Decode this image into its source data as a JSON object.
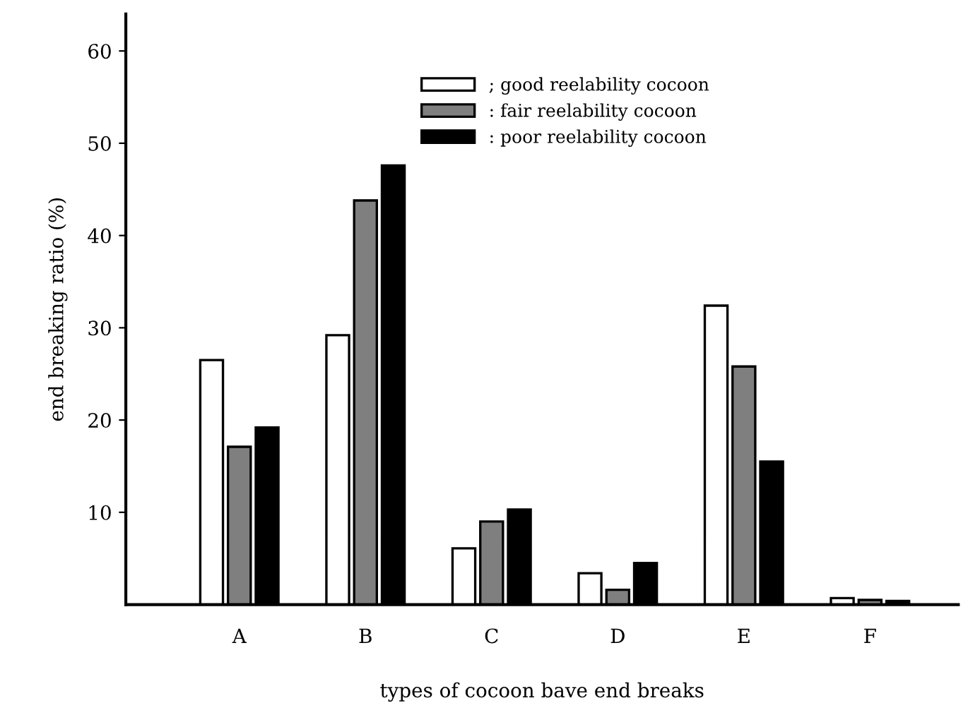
{
  "chart_data": {
    "type": "bar",
    "xlabel": "types of cocoon bave end breaks",
    "ylabel": "end breaking ratio (%)",
    "categories": [
      "A",
      "B",
      "C",
      "D",
      "E",
      "F"
    ],
    "series": [
      {
        "name": "; good reelability cocoon",
        "color": "#ffffff",
        "values": [
          26.5,
          29.2,
          6.1,
          3.4,
          32.4,
          0.7
        ]
      },
      {
        "name": ": fair reelability cocoon",
        "color": "#7f7f7f",
        "values": [
          17.1,
          43.8,
          9.0,
          1.6,
          25.8,
          0.5
        ]
      },
      {
        "name": ": poor reelability cocoon",
        "color": "#000000",
        "values": [
          19.2,
          47.6,
          10.3,
          4.5,
          15.5,
          0.4
        ]
      }
    ],
    "ylim": [
      0,
      64
    ],
    "yticks": [
      10,
      20,
      30,
      40,
      50,
      60
    ],
    "grid": false,
    "legend": "top right"
  }
}
